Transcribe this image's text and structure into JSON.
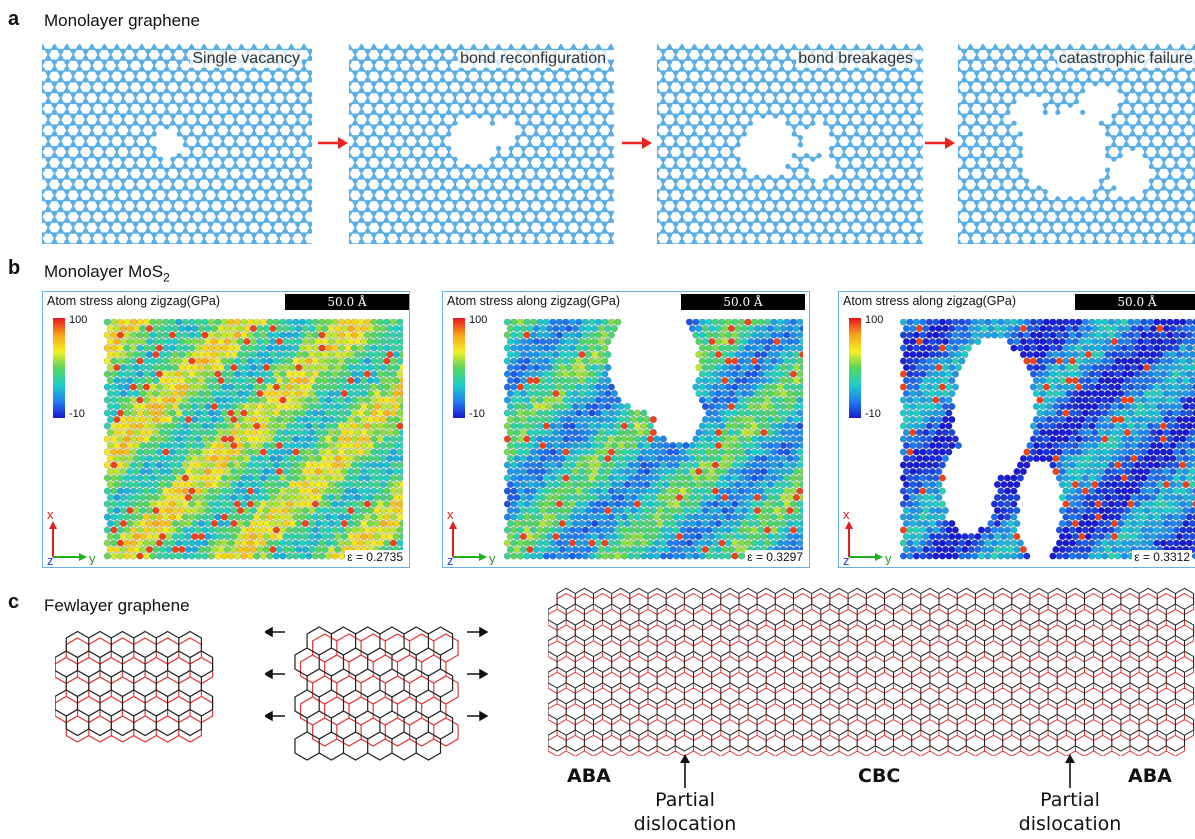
{
  "panel_a": {
    "label": "a",
    "title": "Monolayer graphene",
    "captions": [
      "Single vacancy",
      "bond reconfiguration",
      "bond breakages",
      "catastrophic failure"
    ],
    "atom_color": "#5aaee8",
    "arrow_color": "#e8251f"
  },
  "panel_b": {
    "label": "b",
    "title_main": "Monolayer MoS",
    "title_sub": "2",
    "stress_label": "Atom stress along zigzag(GPa)",
    "scale_bar": "50.0 Å",
    "colorbar_max": "100",
    "colorbar_min": "-10",
    "axis_x": "x",
    "axis_y": "y",
    "axis_z": "z",
    "strains": [
      "ε = 0.2735",
      "ε = 0.3297",
      "ε = 0.3312"
    ]
  },
  "panel_c": {
    "label": "c",
    "title": "Fewlayer graphene",
    "regions": [
      "ABA",
      "CBC",
      "ABA"
    ],
    "dislocation_label_line1": "Partial",
    "dislocation_label_line2": "dislocation",
    "layer_colors": [
      "#222222",
      "#e0383b"
    ]
  }
}
